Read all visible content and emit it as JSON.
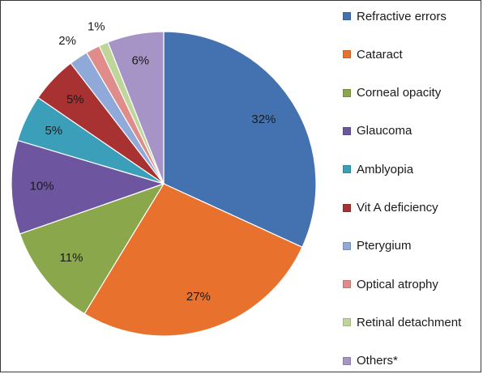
{
  "chart_data": {
    "type": "pie",
    "categories": [
      "Refractive errors",
      "Cataract",
      "Corneal opacity",
      "Glaucoma",
      "Amblyopia",
      "Vit A deficiency",
      "Pterygium",
      "Optical atrophy",
      "Retinal detachment",
      "Others*"
    ],
    "values": [
      32,
      27,
      11,
      10,
      5,
      5,
      2,
      1.5,
      1,
      6
    ],
    "data_labels": [
      "32%",
      "27%",
      "11%",
      "10%",
      "5%",
      "5%",
      "2%",
      "",
      "1%",
      "6%"
    ],
    "colors": [
      "#4472b0",
      "#e8722d",
      "#8aa74b",
      "#6e55a0",
      "#3c9fba",
      "#a83232",
      "#8fa9d8",
      "#e08c8a",
      "#bfd69b",
      "#a794c7"
    ],
    "start": "12 o'clock",
    "direction": "clockwise",
    "legend_position": "right",
    "title": ""
  }
}
